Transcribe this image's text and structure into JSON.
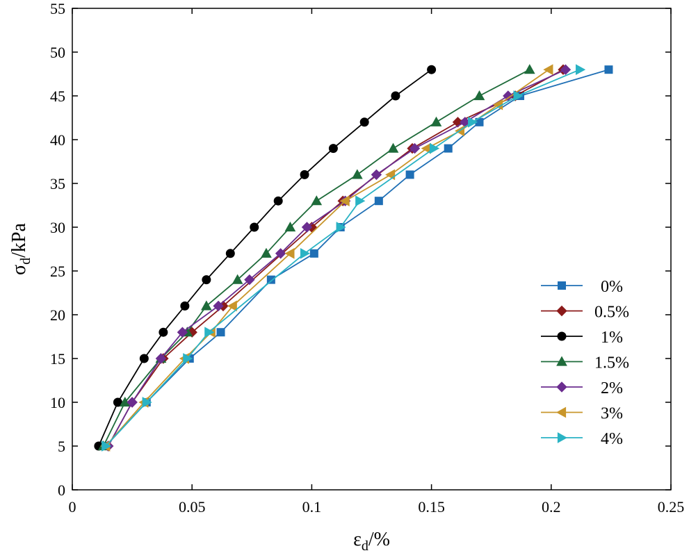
{
  "chart_data": {
    "type": "line",
    "title": "",
    "xlabel": {
      "main": "ε",
      "sub": "d",
      "rest": "/%"
    },
    "ylabel": {
      "main": "σ",
      "sub": "d",
      "rest": "/kPa"
    },
    "xlim": [
      0,
      0.25
    ],
    "ylim": [
      0,
      55
    ],
    "xticks": [
      0,
      0.05,
      0.1,
      0.15,
      0.2,
      0.25
    ],
    "xtick_labels": [
      "0",
      "0.05",
      "0.1",
      "0.15",
      "0.2",
      "0.25"
    ],
    "yticks": [
      0,
      5,
      10,
      15,
      20,
      25,
      30,
      35,
      40,
      45,
      50,
      55
    ],
    "ytick_labels": [
      "0",
      "5",
      "10",
      "15",
      "20",
      "25",
      "30",
      "35",
      "40",
      "45",
      "50",
      "55"
    ],
    "grid": false,
    "legend_position": "bottom-right",
    "series": [
      {
        "name": "0%",
        "color": "#1f6fb5",
        "marker": "square",
        "x": [
          0.014,
          0.031,
          0.049,
          0.062,
          0.083,
          0.101,
          0.112,
          0.128,
          0.141,
          0.157,
          0.17,
          0.187,
          0.224
        ],
        "y": [
          5,
          10,
          15,
          18,
          24,
          27,
          30,
          33,
          36,
          39,
          42,
          45,
          48
        ]
      },
      {
        "name": "0.5%",
        "color": "#8b1a1a",
        "marker": "diamond",
        "x": [
          0.015,
          0.025,
          0.038,
          0.05,
          0.063,
          0.1,
          0.113,
          0.142,
          0.161,
          0.185,
          0.205
        ],
        "y": [
          5,
          10,
          15,
          18,
          21,
          30,
          33,
          39,
          42,
          45,
          48
        ]
      },
      {
        "name": "1%",
        "color": "#000000",
        "marker": "circle",
        "x": [
          0.011,
          0.019,
          0.03,
          0.038,
          0.047,
          0.056,
          0.066,
          0.076,
          0.086,
          0.097,
          0.109,
          0.122,
          0.135,
          0.15
        ],
        "y": [
          5,
          10,
          15,
          18,
          21,
          24,
          27,
          30,
          33,
          36,
          39,
          42,
          45,
          48
        ]
      },
      {
        "name": "1.5%",
        "color": "#1e6b3a",
        "marker": "triangle-up",
        "x": [
          0.013,
          0.022,
          0.037,
          0.048,
          0.056,
          0.069,
          0.081,
          0.091,
          0.102,
          0.119,
          0.134,
          0.152,
          0.17,
          0.191
        ],
        "y": [
          5,
          10,
          15,
          18,
          21,
          24,
          27,
          30,
          33,
          36,
          39,
          42,
          45,
          48
        ]
      },
      {
        "name": "2%",
        "color": "#6b2d8f",
        "marker": "diamond",
        "x": [
          0.015,
          0.025,
          0.037,
          0.046,
          0.061,
          0.074,
          0.087,
          0.098,
          0.114,
          0.127,
          0.143,
          0.164,
          0.182,
          0.206
        ],
        "y": [
          5,
          10,
          15,
          18,
          21,
          24,
          27,
          30,
          33,
          36,
          39,
          42,
          45,
          48
        ]
      },
      {
        "name": "3%",
        "color": "#c9962b",
        "marker": "triangle-left",
        "x": [
          0.014,
          0.03,
          0.047,
          0.058,
          0.067,
          0.091,
          0.114,
          0.133,
          0.148,
          0.162,
          0.178,
          0.199
        ],
        "y": [
          5,
          10,
          15,
          18,
          21,
          27,
          33,
          36,
          39,
          41,
          44,
          48
        ]
      },
      {
        "name": "4%",
        "color": "#2ab3c4",
        "marker": "triangle-right",
        "x": [
          0.014,
          0.031,
          0.048,
          0.057,
          0.097,
          0.112,
          0.12,
          0.151,
          0.167,
          0.186,
          0.212
        ],
        "y": [
          5,
          10,
          15,
          18,
          27,
          30,
          33,
          39,
          42,
          45,
          48
        ]
      }
    ]
  }
}
